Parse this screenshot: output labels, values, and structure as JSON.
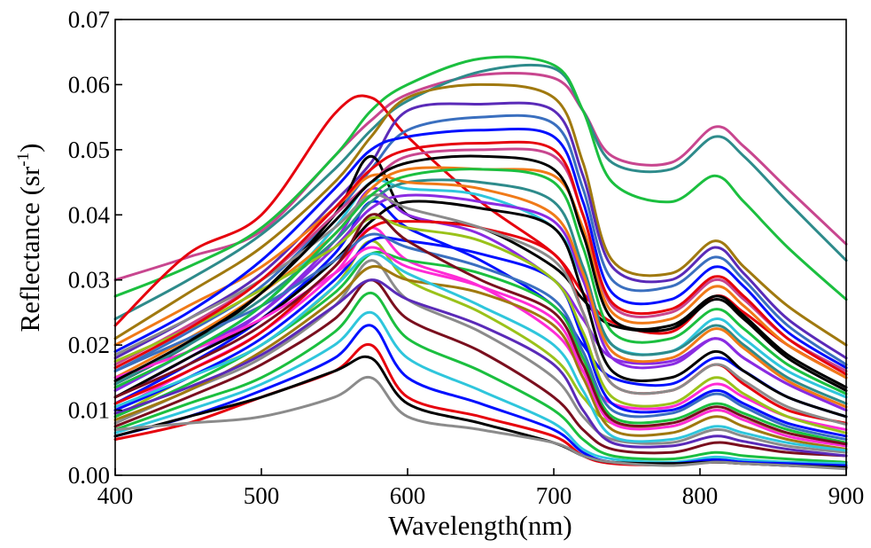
{
  "chart_data": {
    "type": "line",
    "title": "",
    "xlabel": "Wavelength(nm)",
    "ylabel_main": "Reflectance (sr",
    "ylabel_sup": "-1",
    "ylabel_close": ")",
    "xlim": [
      400,
      900
    ],
    "ylim": [
      0.0,
      0.07
    ],
    "x_ticks": [
      400,
      500,
      600,
      700,
      800,
      900
    ],
    "y_ticks": [
      0.0,
      0.01,
      0.02,
      0.03,
      0.04,
      0.05,
      0.06,
      0.07
    ],
    "x_tick_labels": [
      "400",
      "500",
      "600",
      "700",
      "800",
      "900"
    ],
    "y_tick_labels": [
      "0.00",
      "0.01",
      "0.02",
      "0.03",
      "0.04",
      "0.05",
      "0.06",
      "0.07"
    ],
    "grid": false,
    "legend": "none",
    "x": [
      400,
      450,
      500,
      550,
      575,
      600,
      650,
      700,
      720,
      740,
      780,
      810,
      830,
      860,
      900
    ],
    "palette": [
      "#000000",
      "#e6000d",
      "#0010ff",
      "#1bbf3f",
      "#ff2bd6",
      "#8a2be2",
      "#2fc6dc",
      "#8b8b8b",
      "#a0790f",
      "#7a0f1e",
      "#3a6fbf",
      "#9ac21a",
      "#c8468f",
      "#2e8b8b",
      "#5a2ab8",
      "#f07a18"
    ],
    "series": [
      {
        "values": [
          0.03,
          0.0335,
          0.0375,
          0.049,
          0.0545,
          0.0585,
          0.0615,
          0.061,
          0.056,
          0.049,
          0.048,
          0.0535,
          0.0505,
          0.044,
          0.0355
        ],
        "color": "#c8468f"
      },
      {
        "values": [
          0.024,
          0.03,
          0.037,
          0.047,
          0.053,
          0.0575,
          0.062,
          0.0625,
          0.056,
          0.048,
          0.047,
          0.052,
          0.049,
          0.042,
          0.033
        ],
        "color": "#2e8b8b"
      },
      {
        "values": [
          0.0275,
          0.032,
          0.038,
          0.049,
          0.056,
          0.06,
          0.064,
          0.063,
          0.056,
          0.045,
          0.042,
          0.046,
          0.042,
          0.035,
          0.027
        ],
        "color": "#1bbf3f"
      },
      {
        "values": [
          0.023,
          0.034,
          0.04,
          0.0555,
          0.058,
          0.052,
          0.042,
          0.034,
          0.028,
          0.0235,
          0.022,
          0.0275,
          0.025,
          0.02,
          0.015
        ],
        "color": "#e6000d"
      },
      {
        "values": [
          0.021,
          0.028,
          0.035,
          0.045,
          0.052,
          0.058,
          0.06,
          0.058,
          0.048,
          0.033,
          0.031,
          0.036,
          0.032,
          0.026,
          0.02
        ],
        "color": "#a0790f"
      },
      {
        "values": [
          0.018,
          0.024,
          0.031,
          0.042,
          0.048,
          0.056,
          0.057,
          0.056,
          0.046,
          0.032,
          0.03,
          0.035,
          0.031,
          0.024,
          0.018
        ],
        "color": "#5a2ab8"
      },
      {
        "values": [
          0.016,
          0.022,
          0.029,
          0.04,
          0.047,
          0.053,
          0.055,
          0.054,
          0.044,
          0.03,
          0.029,
          0.0335,
          0.03,
          0.023,
          0.017
        ],
        "color": "#3a6fbf"
      },
      {
        "values": [
          0.014,
          0.02,
          0.028,
          0.04,
          0.049,
          0.04,
          0.038,
          0.032,
          0.027,
          0.023,
          0.0225,
          0.027,
          0.024,
          0.018,
          0.013
        ],
        "color": "#000000"
      },
      {
        "values": [
          0.013,
          0.019,
          0.026,
          0.038,
          0.045,
          0.044,
          0.043,
          0.038,
          0.03,
          0.02,
          0.019,
          0.024,
          0.021,
          0.016,
          0.012
        ],
        "color": "#2fc6dc"
      },
      {
        "values": [
          0.012,
          0.018,
          0.025,
          0.036,
          0.044,
          0.04,
          0.037,
          0.03,
          0.024,
          0.018,
          0.0175,
          0.021,
          0.018,
          0.014,
          0.01
        ],
        "color": "#8a2be2"
      },
      {
        "values": [
          0.011,
          0.017,
          0.024,
          0.034,
          0.042,
          0.038,
          0.033,
          0.026,
          0.02,
          0.015,
          0.014,
          0.018,
          0.016,
          0.012,
          0.009
        ],
        "color": "#0010ff"
      },
      {
        "values": [
          0.01,
          0.016,
          0.022,
          0.031,
          0.038,
          0.033,
          0.029,
          0.022,
          0.016,
          0.011,
          0.0105,
          0.014,
          0.012,
          0.009,
          0.007
        ],
        "color": "#ff2bd6"
      },
      {
        "values": [
          0.009,
          0.015,
          0.02,
          0.029,
          0.036,
          0.03,
          0.025,
          0.018,
          0.012,
          0.008,
          0.0075,
          0.01,
          0.0085,
          0.0065,
          0.005
        ],
        "color": "#9ac21a"
      },
      {
        "values": [
          0.008,
          0.013,
          0.018,
          0.026,
          0.033,
          0.027,
          0.022,
          0.015,
          0.009,
          0.0055,
          0.005,
          0.007,
          0.006,
          0.0045,
          0.0035
        ],
        "color": "#8b8b8b"
      },
      {
        "values": [
          0.0075,
          0.012,
          0.017,
          0.024,
          0.03,
          0.024,
          0.019,
          0.012,
          0.007,
          0.004,
          0.0035,
          0.005,
          0.0045,
          0.0035,
          0.003
        ],
        "color": "#7a0f1e"
      },
      {
        "values": [
          0.007,
          0.011,
          0.015,
          0.022,
          0.028,
          0.021,
          0.016,
          0.01,
          0.0055,
          0.003,
          0.0025,
          0.0035,
          0.003,
          0.0025,
          0.002
        ],
        "color": "#1bbf3f"
      },
      {
        "values": [
          0.0065,
          0.01,
          0.014,
          0.02,
          0.025,
          0.018,
          0.013,
          0.008,
          0.004,
          0.0025,
          0.002,
          0.0028,
          0.0024,
          0.002,
          0.0018
        ],
        "color": "#2fc6dc"
      },
      {
        "values": [
          0.006,
          0.009,
          0.013,
          0.018,
          0.023,
          0.015,
          0.011,
          0.007,
          0.0035,
          0.002,
          0.0018,
          0.0024,
          0.002,
          0.0018,
          0.0015
        ],
        "color": "#0010ff"
      },
      {
        "values": [
          0.0055,
          0.008,
          0.012,
          0.016,
          0.02,
          0.012,
          0.009,
          0.006,
          0.003,
          0.0018,
          0.0016,
          0.002,
          0.0018,
          0.0015,
          0.0012
        ],
        "color": "#e6000d"
      },
      {
        "values": [
          0.006,
          0.009,
          0.012,
          0.016,
          0.018,
          0.011,
          0.008,
          0.005,
          0.003,
          0.002,
          0.0018,
          0.002,
          0.0018,
          0.0015,
          0.0012
        ],
        "color": "#000000"
      },
      {
        "values": [
          0.007,
          0.008,
          0.009,
          0.012,
          0.015,
          0.009,
          0.007,
          0.005,
          0.003,
          0.002,
          0.0015,
          0.002,
          0.0018,
          0.0015,
          0.001
        ],
        "color": "#8b8b8b"
      },
      {
        "values": [
          0.015,
          0.021,
          0.028,
          0.037,
          0.044,
          0.047,
          0.047,
          0.046,
          0.038,
          0.025,
          0.024,
          0.029,
          0.026,
          0.02,
          0.015
        ],
        "color": "#f07a18"
      },
      {
        "values": [
          0.017,
          0.023,
          0.03,
          0.04,
          0.045,
          0.049,
          0.05,
          0.049,
          0.04,
          0.026,
          0.025,
          0.03,
          0.027,
          0.021,
          0.016
        ],
        "color": "#c8468f"
      },
      {
        "values": [
          0.014,
          0.02,
          0.027,
          0.036,
          0.042,
          0.045,
          0.045,
          0.042,
          0.032,
          0.02,
          0.019,
          0.023,
          0.02,
          0.015,
          0.011
        ],
        "color": "#2e8b8b"
      },
      {
        "values": [
          0.012,
          0.018,
          0.024,
          0.033,
          0.039,
          0.042,
          0.041,
          0.038,
          0.028,
          0.016,
          0.015,
          0.019,
          0.016,
          0.012,
          0.009
        ],
        "color": "#000000"
      },
      {
        "values": [
          0.013,
          0.019,
          0.025,
          0.035,
          0.041,
          0.043,
          0.042,
          0.039,
          0.03,
          0.018,
          0.017,
          0.021,
          0.018,
          0.014,
          0.01
        ],
        "color": "#8a2be2"
      },
      {
        "values": [
          0.011,
          0.016,
          0.022,
          0.032,
          0.038,
          0.039,
          0.038,
          0.034,
          0.025,
          0.014,
          0.013,
          0.017,
          0.014,
          0.01,
          0.008
        ],
        "color": "#e6000d"
      },
      {
        "values": [
          0.01,
          0.015,
          0.021,
          0.03,
          0.036,
          0.036,
          0.034,
          0.03,
          0.021,
          0.011,
          0.01,
          0.013,
          0.011,
          0.008,
          0.006
        ],
        "color": "#0010ff"
      },
      {
        "values": [
          0.009,
          0.014,
          0.02,
          0.028,
          0.034,
          0.033,
          0.031,
          0.026,
          0.018,
          0.009,
          0.0085,
          0.011,
          0.0095,
          0.007,
          0.005
        ],
        "color": "#1bbf3f"
      },
      {
        "values": [
          0.0085,
          0.013,
          0.019,
          0.027,
          0.032,
          0.03,
          0.028,
          0.023,
          0.015,
          0.007,
          0.0065,
          0.009,
          0.0075,
          0.0055,
          0.004
        ],
        "color": "#a0790f"
      },
      {
        "values": [
          0.015,
          0.019,
          0.024,
          0.031,
          0.035,
          0.032,
          0.029,
          0.024,
          0.016,
          0.008,
          0.0075,
          0.01,
          0.0085,
          0.006,
          0.0045
        ],
        "color": "#ff2bd6"
      },
      {
        "values": [
          0.016,
          0.021,
          0.026,
          0.033,
          0.037,
          0.035,
          0.032,
          0.027,
          0.019,
          0.01,
          0.0095,
          0.0125,
          0.0105,
          0.0075,
          0.0055
        ],
        "color": "#3a6fbf"
      },
      {
        "values": [
          0.0175,
          0.0225,
          0.0285,
          0.035,
          0.0395,
          0.038,
          0.036,
          0.03,
          0.022,
          0.012,
          0.011,
          0.015,
          0.0125,
          0.009,
          0.0065
        ],
        "color": "#9ac21a"
      },
      {
        "values": [
          0.012,
          0.017,
          0.023,
          0.032,
          0.04,
          0.036,
          0.03,
          0.025,
          0.017,
          0.0085,
          0.008,
          0.0105,
          0.009,
          0.0065,
          0.0048
        ],
        "color": "#7a0f1e"
      },
      {
        "values": [
          0.0105,
          0.015,
          0.02,
          0.029,
          0.034,
          0.031,
          0.026,
          0.02,
          0.013,
          0.006,
          0.0055,
          0.0075,
          0.0065,
          0.005,
          0.0038
        ],
        "color": "#2fc6dc"
      },
      {
        "values": [
          0.0095,
          0.0135,
          0.0185,
          0.026,
          0.03,
          0.027,
          0.023,
          0.017,
          0.01,
          0.005,
          0.0045,
          0.006,
          0.0052,
          0.004,
          0.003
        ],
        "color": "#5a2ab8"
      },
      {
        "values": [
          0.0185,
          0.024,
          0.03,
          0.038,
          0.043,
          0.041,
          0.038,
          0.033,
          0.025,
          0.014,
          0.013,
          0.017,
          0.0145,
          0.0105,
          0.0078
        ],
        "color": "#8b8b8b"
      },
      {
        "values": [
          0.02,
          0.026,
          0.032,
          0.041,
          0.046,
          0.045,
          0.044,
          0.04,
          0.031,
          0.019,
          0.018,
          0.0225,
          0.0195,
          0.0145,
          0.0105
        ],
        "color": "#f07a18"
      },
      {
        "values": [
          0.019,
          0.025,
          0.033,
          0.044,
          0.05,
          0.052,
          0.053,
          0.052,
          0.042,
          0.028,
          0.027,
          0.032,
          0.029,
          0.022,
          0.0165
        ],
        "color": "#0010ff"
      },
      {
        "values": [
          0.0165,
          0.0225,
          0.03,
          0.041,
          0.047,
          0.05,
          0.051,
          0.05,
          0.04,
          0.0265,
          0.0255,
          0.0305,
          0.0275,
          0.021,
          0.0155
        ],
        "color": "#e6000d"
      },
      {
        "values": [
          0.0135,
          0.019,
          0.026,
          0.037,
          0.043,
          0.046,
          0.047,
          0.045,
          0.035,
          0.022,
          0.021,
          0.0255,
          0.0225,
          0.017,
          0.0125
        ],
        "color": "#1bbf3f"
      },
      {
        "values": [
          0.0145,
          0.0205,
          0.028,
          0.039,
          0.045,
          0.048,
          0.049,
          0.047,
          0.037,
          0.024,
          0.023,
          0.0275,
          0.0245,
          0.0185,
          0.0135
        ],
        "color": "#000000"
      }
    ]
  }
}
